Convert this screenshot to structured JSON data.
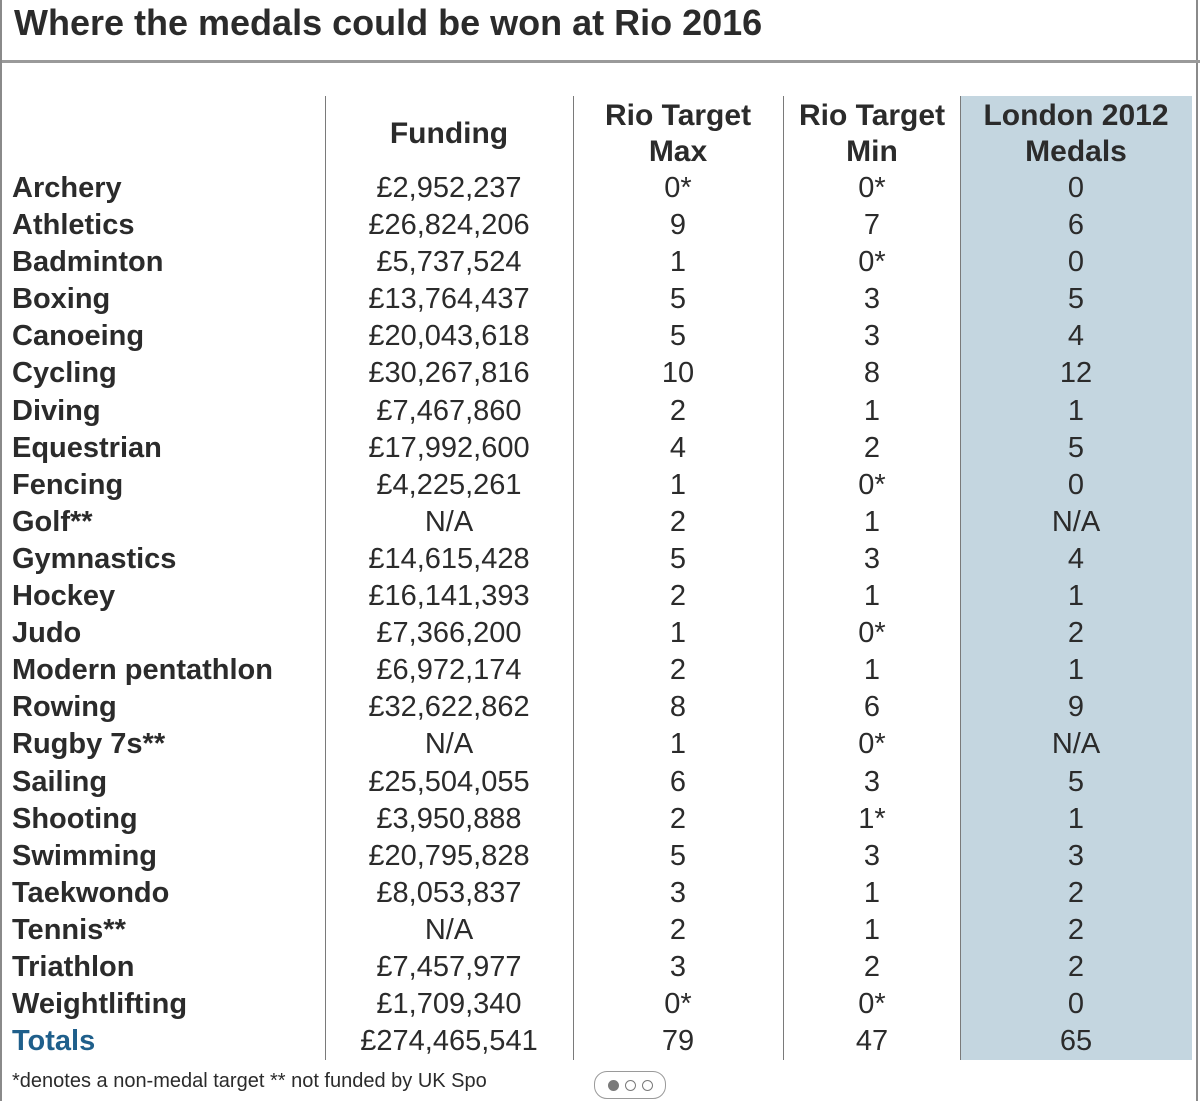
{
  "title": "Where the medals could be won at Rio 2016",
  "headers": {
    "funding": "Funding",
    "rio_max": [
      "Rio Target",
      "Max"
    ],
    "rio_min": [
      "Rio Target",
      "Min"
    ],
    "london": [
      "London 2012",
      "Medals"
    ]
  },
  "rows": [
    {
      "sport": "Archery",
      "funding": "£2,952,237",
      "max": "0*",
      "min": "0*",
      "london": "0"
    },
    {
      "sport": "Athletics",
      "funding": "£26,824,206",
      "max": "9",
      "min": "7",
      "london": "6"
    },
    {
      "sport": "Badminton",
      "funding": "£5,737,524",
      "max": "1",
      "min": "0*",
      "london": "0"
    },
    {
      "sport": "Boxing",
      "funding": "£13,764,437",
      "max": "5",
      "min": "3",
      "london": "5"
    },
    {
      "sport": "Canoeing",
      "funding": "£20,043,618",
      "max": "5",
      "min": "3",
      "london": "4"
    },
    {
      "sport": "Cycling",
      "funding": "£30,267,816",
      "max": "10",
      "min": "8",
      "london": "12"
    },
    {
      "sport": "Diving",
      "funding": "£7,467,860",
      "max": "2",
      "min": "1",
      "london": "1"
    },
    {
      "sport": "Equestrian",
      "funding": "£17,992,600",
      "max": "4",
      "min": "2",
      "london": "5"
    },
    {
      "sport": "Fencing",
      "funding": "£4,225,261",
      "max": "1",
      "min": "0*",
      "london": "0"
    },
    {
      "sport": "Golf**",
      "funding": "N/A",
      "max": "2",
      "min": "1",
      "london": "N/A"
    },
    {
      "sport": "Gymnastics",
      "funding": "£14,615,428",
      "max": "5",
      "min": "3",
      "london": "4"
    },
    {
      "sport": "Hockey",
      "funding": "£16,141,393",
      "max": "2",
      "min": "1",
      "london": "1"
    },
    {
      "sport": "Judo",
      "funding": "£7,366,200",
      "max": "1",
      "min": "0*",
      "london": "2"
    },
    {
      "sport": "Modern pentathlon",
      "funding": "£6,972,174",
      "max": "2",
      "min": "1",
      "london": "1"
    },
    {
      "sport": "Rowing",
      "funding": "£32,622,862",
      "max": "8",
      "min": "6",
      "london": "9"
    },
    {
      "sport": "Rugby 7s**",
      "funding": "N/A",
      "max": "1",
      "min": "0*",
      "london": "N/A"
    },
    {
      "sport": "Sailing",
      "funding": "£25,504,055",
      "max": "6",
      "min": "3",
      "london": "5"
    },
    {
      "sport": "Shooting",
      "funding": "£3,950,888",
      "max": "2",
      "min": "1*",
      "london": "1"
    },
    {
      "sport": "Swimming",
      "funding": "£20,795,828",
      "max": "5",
      "min": "3",
      "london": "3"
    },
    {
      "sport": "Taekwondo",
      "funding": "£8,053,837",
      "max": "3",
      "min": "1",
      "london": "2"
    },
    {
      "sport": "Tennis**",
      "funding": "N/A",
      "max": "2",
      "min": "1",
      "london": "2"
    },
    {
      "sport": "Triathlon",
      "funding": "£7,457,977",
      "max": "3",
      "min": "2",
      "london": "2"
    },
    {
      "sport": "Weightlifting",
      "funding": "£1,709,340",
      "max": "0*",
      "min": "0*",
      "london": "0"
    }
  ],
  "totals": {
    "label": "Totals",
    "funding": "£274,465,541",
    "max": "79",
    "min": "47",
    "london": "65"
  },
  "footnote": "*denotes a non-medal target ** not funded by UK Spo",
  "colors": {
    "london_column": "#c4d6e0",
    "totals_label": "#1f5f8b"
  }
}
